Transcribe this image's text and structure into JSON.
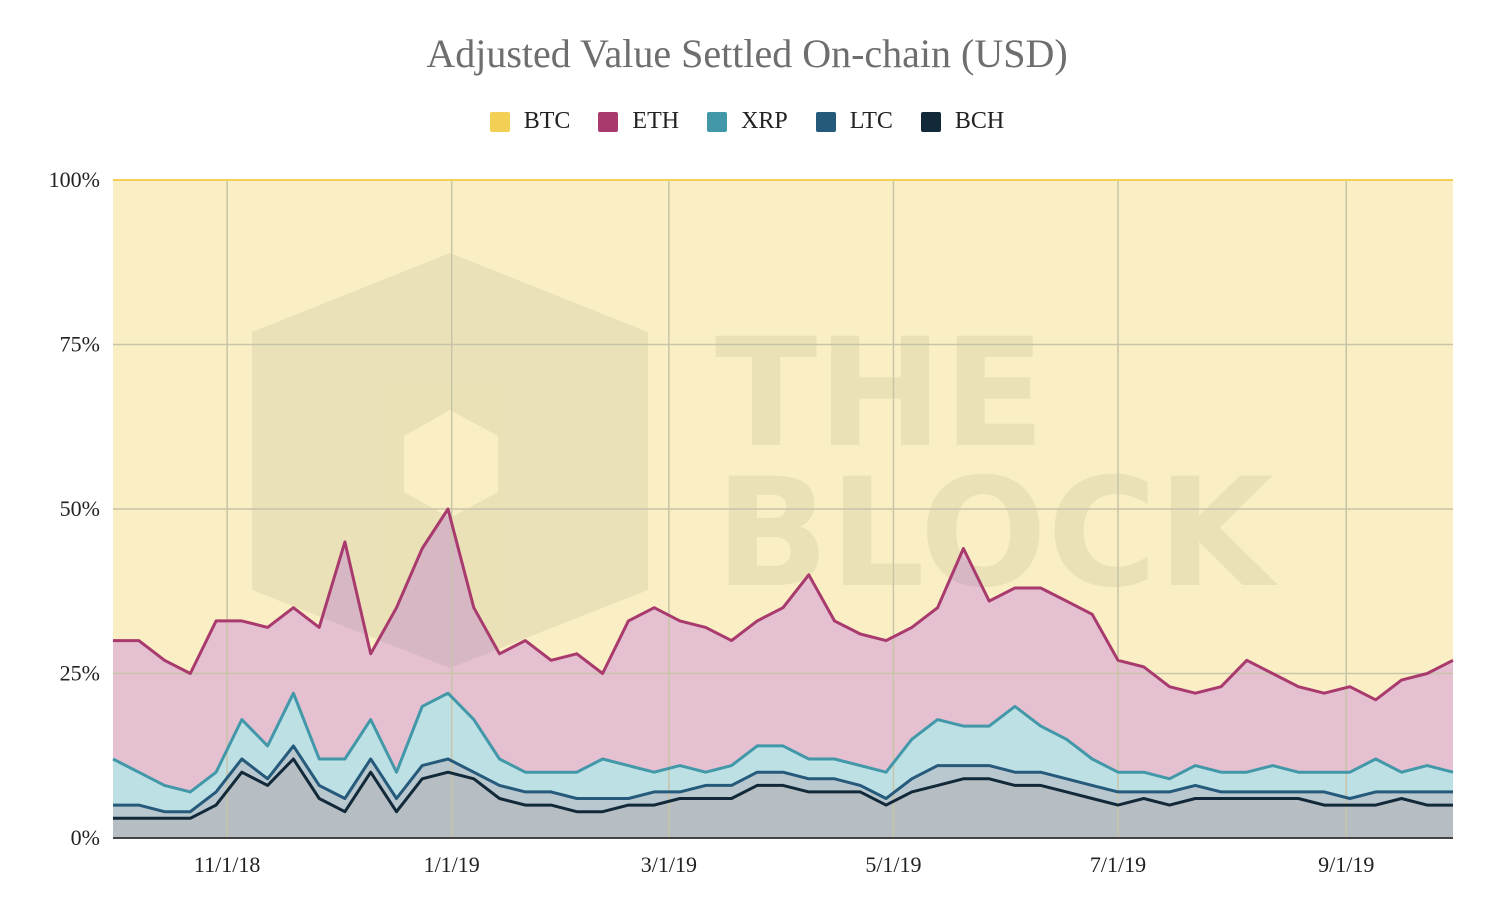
{
  "chart_data": {
    "type": "area",
    "stacked": "percent",
    "title": "Adjusted Value Settled On-chain (USD)",
    "xlabel": "",
    "ylabel": "",
    "ylim": [
      0,
      100
    ],
    "grid": true,
    "legend": "top",
    "x_ticks": [
      {
        "date": "2018-11-01",
        "label": "11/1/18"
      },
      {
        "date": "2019-01-01",
        "label": "1/1/19"
      },
      {
        "date": "2019-03-01",
        "label": "3/1/19"
      },
      {
        "date": "2019-05-01",
        "label": "5/1/19"
      },
      {
        "date": "2019-07-01",
        "label": "7/1/19"
      },
      {
        "date": "2019-09-01",
        "label": "9/1/19"
      }
    ],
    "xlim": [
      "2018-10-01",
      "2019-09-30"
    ],
    "y_ticks": [
      {
        "value": 0,
        "label": "0%"
      },
      {
        "value": 25,
        "label": "25%"
      },
      {
        "value": 50,
        "label": "50%"
      },
      {
        "value": 75,
        "label": "75%"
      },
      {
        "value": 100,
        "label": "100%"
      }
    ],
    "x": [
      "2018-10-01",
      "2018-10-08",
      "2018-10-15",
      "2018-10-22",
      "2018-10-29",
      "2018-11-05",
      "2018-11-12",
      "2018-11-19",
      "2018-11-26",
      "2018-12-03",
      "2018-12-10",
      "2018-12-17",
      "2018-12-24",
      "2018-12-31",
      "2019-01-07",
      "2019-01-14",
      "2019-01-21",
      "2019-01-28",
      "2019-02-04",
      "2019-02-11",
      "2019-02-18",
      "2019-02-25",
      "2019-03-04",
      "2019-03-11",
      "2019-03-18",
      "2019-03-25",
      "2019-04-01",
      "2019-04-08",
      "2019-04-15",
      "2019-04-22",
      "2019-04-29",
      "2019-05-06",
      "2019-05-13",
      "2019-05-20",
      "2019-05-27",
      "2019-06-03",
      "2019-06-10",
      "2019-06-17",
      "2019-06-24",
      "2019-07-01",
      "2019-07-08",
      "2019-07-15",
      "2019-07-22",
      "2019-07-29",
      "2019-08-05",
      "2019-08-12",
      "2019-08-19",
      "2019-08-26",
      "2019-09-02",
      "2019-09-09",
      "2019-09-16",
      "2019-09-23",
      "2019-09-30"
    ],
    "series": [
      {
        "name": "BCH",
        "color": "#12293a",
        "fill": "#b7bec3",
        "values": [
          3,
          3,
          3,
          3,
          5,
          10,
          8,
          12,
          6,
          4,
          10,
          4,
          9,
          10,
          9,
          6,
          5,
          5,
          4,
          4,
          5,
          5,
          6,
          6,
          6,
          8,
          8,
          7,
          7,
          7,
          5,
          7,
          8,
          9,
          9,
          8,
          8,
          7,
          6,
          5,
          6,
          5,
          6,
          6,
          6,
          6,
          6,
          5,
          5,
          5,
          6,
          5,
          5
        ]
      },
      {
        "name": "LTC",
        "color": "#255a7b",
        "fill": "#b9c7cf",
        "values": [
          2,
          2,
          1,
          1,
          2,
          2,
          1,
          2,
          2,
          2,
          2,
          2,
          2,
          2,
          1,
          2,
          2,
          2,
          2,
          2,
          1,
          2,
          1,
          2,
          2,
          2,
          2,
          2,
          2,
          1,
          1,
          2,
          3,
          2,
          2,
          2,
          2,
          2,
          2,
          2,
          1,
          2,
          2,
          1,
          1,
          1,
          1,
          2,
          1,
          2,
          1,
          2,
          2
        ]
      },
      {
        "name": "XRP",
        "color": "#4298a8",
        "fill": "#bde0e5",
        "values": [
          7,
          5,
          4,
          3,
          3,
          6,
          5,
          8,
          4,
          6,
          6,
          4,
          9,
          10,
          8,
          4,
          3,
          3,
          4,
          6,
          5,
          3,
          4,
          2,
          3,
          4,
          4,
          3,
          3,
          3,
          4,
          6,
          7,
          6,
          6,
          10,
          7,
          6,
          4,
          3,
          3,
          2,
          3,
          3,
          3,
          4,
          3,
          3,
          4,
          5,
          3,
          4,
          3
        ]
      },
      {
        "name": "ETH",
        "color": "#a83a6e",
        "fill": "#e4c0d1",
        "values": [
          18,
          20,
          19,
          18,
          23,
          15,
          18,
          13,
          20,
          33,
          10,
          25,
          24,
          28,
          17,
          16,
          20,
          17,
          18,
          13,
          22,
          25,
          22,
          22,
          19,
          19,
          21,
          28,
          21,
          20,
          20,
          17,
          17,
          27,
          19,
          18,
          21,
          21,
          22,
          17,
          16,
          14,
          11,
          13,
          17,
          14,
          13,
          12,
          13,
          9,
          14,
          14,
          17
        ]
      },
      {
        "name": "BTC",
        "color": "#f4cf55",
        "fill": "#faefc4",
        "values": [
          70,
          70,
          73,
          75,
          67,
          67,
          68,
          65,
          68,
          55,
          72,
          65,
          56,
          50,
          65,
          72,
          70,
          73,
          72,
          75,
          67,
          65,
          67,
          68,
          70,
          67,
          65,
          60,
          67,
          69,
          70,
          68,
          65,
          56,
          64,
          62,
          62,
          64,
          66,
          73,
          74,
          77,
          78,
          77,
          73,
          75,
          77,
          78,
          77,
          79,
          76,
          75,
          73
        ]
      }
    ],
    "legend_order": [
      "BTC",
      "ETH",
      "XRP",
      "LTC",
      "BCH"
    ]
  },
  "watermark": "THE BLOCK"
}
